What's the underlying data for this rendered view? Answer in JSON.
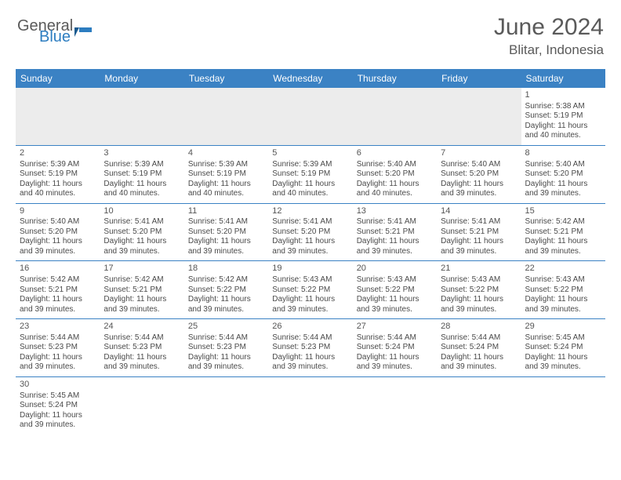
{
  "brand": {
    "part1": "General",
    "part2": "Blue",
    "color1": "#5a5a5a",
    "color2": "#2d7dc0"
  },
  "title": "June 2024",
  "location": "Blitar, Indonesia",
  "colors": {
    "header_bg": "#3b82c4",
    "header_text": "#ffffff",
    "blank_bg": "#ececec",
    "border": "#3b82c4",
    "text": "#4a4a4a"
  },
  "day_headers": [
    "Sunday",
    "Monday",
    "Tuesday",
    "Wednesday",
    "Thursday",
    "Friday",
    "Saturday"
  ],
  "weeks": [
    [
      {
        "blank": true
      },
      {
        "blank": true
      },
      {
        "blank": true
      },
      {
        "blank": true
      },
      {
        "blank": true
      },
      {
        "blank": true
      },
      {
        "day": "1",
        "sunrise": "Sunrise: 5:38 AM",
        "sunset": "Sunset: 5:19 PM",
        "daylight1": "Daylight: 11 hours",
        "daylight2": "and 40 minutes."
      }
    ],
    [
      {
        "day": "2",
        "sunrise": "Sunrise: 5:39 AM",
        "sunset": "Sunset: 5:19 PM",
        "daylight1": "Daylight: 11 hours",
        "daylight2": "and 40 minutes."
      },
      {
        "day": "3",
        "sunrise": "Sunrise: 5:39 AM",
        "sunset": "Sunset: 5:19 PM",
        "daylight1": "Daylight: 11 hours",
        "daylight2": "and 40 minutes."
      },
      {
        "day": "4",
        "sunrise": "Sunrise: 5:39 AM",
        "sunset": "Sunset: 5:19 PM",
        "daylight1": "Daylight: 11 hours",
        "daylight2": "and 40 minutes."
      },
      {
        "day": "5",
        "sunrise": "Sunrise: 5:39 AM",
        "sunset": "Sunset: 5:19 PM",
        "daylight1": "Daylight: 11 hours",
        "daylight2": "and 40 minutes."
      },
      {
        "day": "6",
        "sunrise": "Sunrise: 5:40 AM",
        "sunset": "Sunset: 5:20 PM",
        "daylight1": "Daylight: 11 hours",
        "daylight2": "and 40 minutes."
      },
      {
        "day": "7",
        "sunrise": "Sunrise: 5:40 AM",
        "sunset": "Sunset: 5:20 PM",
        "daylight1": "Daylight: 11 hours",
        "daylight2": "and 39 minutes."
      },
      {
        "day": "8",
        "sunrise": "Sunrise: 5:40 AM",
        "sunset": "Sunset: 5:20 PM",
        "daylight1": "Daylight: 11 hours",
        "daylight2": "and 39 minutes."
      }
    ],
    [
      {
        "day": "9",
        "sunrise": "Sunrise: 5:40 AM",
        "sunset": "Sunset: 5:20 PM",
        "daylight1": "Daylight: 11 hours",
        "daylight2": "and 39 minutes."
      },
      {
        "day": "10",
        "sunrise": "Sunrise: 5:41 AM",
        "sunset": "Sunset: 5:20 PM",
        "daylight1": "Daylight: 11 hours",
        "daylight2": "and 39 minutes."
      },
      {
        "day": "11",
        "sunrise": "Sunrise: 5:41 AM",
        "sunset": "Sunset: 5:20 PM",
        "daylight1": "Daylight: 11 hours",
        "daylight2": "and 39 minutes."
      },
      {
        "day": "12",
        "sunrise": "Sunrise: 5:41 AM",
        "sunset": "Sunset: 5:20 PM",
        "daylight1": "Daylight: 11 hours",
        "daylight2": "and 39 minutes."
      },
      {
        "day": "13",
        "sunrise": "Sunrise: 5:41 AM",
        "sunset": "Sunset: 5:21 PM",
        "daylight1": "Daylight: 11 hours",
        "daylight2": "and 39 minutes."
      },
      {
        "day": "14",
        "sunrise": "Sunrise: 5:41 AM",
        "sunset": "Sunset: 5:21 PM",
        "daylight1": "Daylight: 11 hours",
        "daylight2": "and 39 minutes."
      },
      {
        "day": "15",
        "sunrise": "Sunrise: 5:42 AM",
        "sunset": "Sunset: 5:21 PM",
        "daylight1": "Daylight: 11 hours",
        "daylight2": "and 39 minutes."
      }
    ],
    [
      {
        "day": "16",
        "sunrise": "Sunrise: 5:42 AM",
        "sunset": "Sunset: 5:21 PM",
        "daylight1": "Daylight: 11 hours",
        "daylight2": "and 39 minutes."
      },
      {
        "day": "17",
        "sunrise": "Sunrise: 5:42 AM",
        "sunset": "Sunset: 5:21 PM",
        "daylight1": "Daylight: 11 hours",
        "daylight2": "and 39 minutes."
      },
      {
        "day": "18",
        "sunrise": "Sunrise: 5:42 AM",
        "sunset": "Sunset: 5:22 PM",
        "daylight1": "Daylight: 11 hours",
        "daylight2": "and 39 minutes."
      },
      {
        "day": "19",
        "sunrise": "Sunrise: 5:43 AM",
        "sunset": "Sunset: 5:22 PM",
        "daylight1": "Daylight: 11 hours",
        "daylight2": "and 39 minutes."
      },
      {
        "day": "20",
        "sunrise": "Sunrise: 5:43 AM",
        "sunset": "Sunset: 5:22 PM",
        "daylight1": "Daylight: 11 hours",
        "daylight2": "and 39 minutes."
      },
      {
        "day": "21",
        "sunrise": "Sunrise: 5:43 AM",
        "sunset": "Sunset: 5:22 PM",
        "daylight1": "Daylight: 11 hours",
        "daylight2": "and 39 minutes."
      },
      {
        "day": "22",
        "sunrise": "Sunrise: 5:43 AM",
        "sunset": "Sunset: 5:22 PM",
        "daylight1": "Daylight: 11 hours",
        "daylight2": "and 39 minutes."
      }
    ],
    [
      {
        "day": "23",
        "sunrise": "Sunrise: 5:44 AM",
        "sunset": "Sunset: 5:23 PM",
        "daylight1": "Daylight: 11 hours",
        "daylight2": "and 39 minutes."
      },
      {
        "day": "24",
        "sunrise": "Sunrise: 5:44 AM",
        "sunset": "Sunset: 5:23 PM",
        "daylight1": "Daylight: 11 hours",
        "daylight2": "and 39 minutes."
      },
      {
        "day": "25",
        "sunrise": "Sunrise: 5:44 AM",
        "sunset": "Sunset: 5:23 PM",
        "daylight1": "Daylight: 11 hours",
        "daylight2": "and 39 minutes."
      },
      {
        "day": "26",
        "sunrise": "Sunrise: 5:44 AM",
        "sunset": "Sunset: 5:23 PM",
        "daylight1": "Daylight: 11 hours",
        "daylight2": "and 39 minutes."
      },
      {
        "day": "27",
        "sunrise": "Sunrise: 5:44 AM",
        "sunset": "Sunset: 5:24 PM",
        "daylight1": "Daylight: 11 hours",
        "daylight2": "and 39 minutes."
      },
      {
        "day": "28",
        "sunrise": "Sunrise: 5:44 AM",
        "sunset": "Sunset: 5:24 PM",
        "daylight1": "Daylight: 11 hours",
        "daylight2": "and 39 minutes."
      },
      {
        "day": "29",
        "sunrise": "Sunrise: 5:45 AM",
        "sunset": "Sunset: 5:24 PM",
        "daylight1": "Daylight: 11 hours",
        "daylight2": "and 39 minutes."
      }
    ],
    [
      {
        "day": "30",
        "sunrise": "Sunrise: 5:45 AM",
        "sunset": "Sunset: 5:24 PM",
        "daylight1": "Daylight: 11 hours",
        "daylight2": "and 39 minutes."
      },
      {
        "blank": true,
        "noborder": true
      },
      {
        "blank": true,
        "noborder": true
      },
      {
        "blank": true,
        "noborder": true
      },
      {
        "blank": true,
        "noborder": true
      },
      {
        "blank": true,
        "noborder": true
      },
      {
        "blank": true,
        "noborder": true
      }
    ]
  ]
}
